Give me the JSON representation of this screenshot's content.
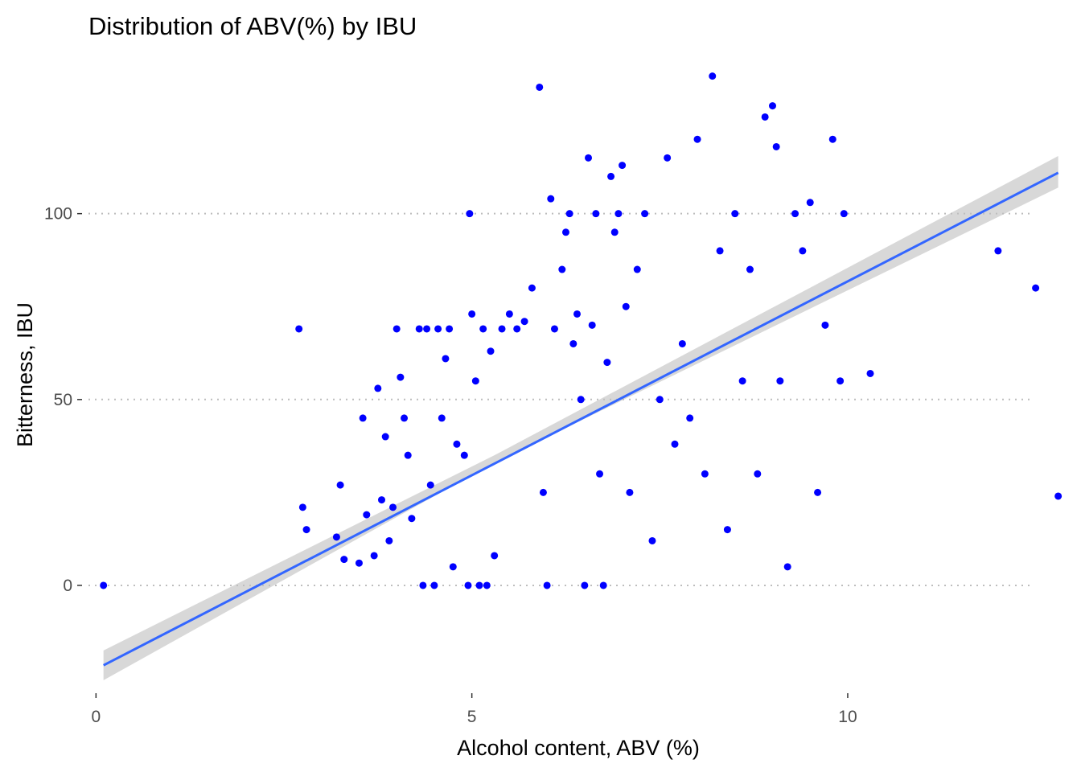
{
  "chart_data": {
    "type": "scatter",
    "title": "Distribution of ABV(%) by IBU",
    "xlabel": "Alcohol content, ABV (%)",
    "ylabel": "Bitterness, IBU",
    "xlim": [
      -0.1,
      12.9
    ],
    "ylim": [
      -29,
      138
    ],
    "x_ticks": [
      0,
      5,
      10
    ],
    "y_ticks": [
      0,
      50,
      100
    ],
    "x_tick_labels": [
      "0",
      "5",
      "10"
    ],
    "y_tick_labels": [
      "0",
      "50",
      "100"
    ],
    "grid": "horizontal dotted lines at y ticks",
    "legend": "none",
    "colors": {
      "points": "#0000FF",
      "trend_line": "#3366FF",
      "confidence_band": "#BEBEBE"
    },
    "trend_line": {
      "x": [
        0.1,
        12.8
      ],
      "y": [
        -21.5,
        111.0
      ]
    },
    "confidence_band": {
      "x": [
        0.1,
        5.3,
        12.8
      ],
      "lower": [
        -25.5,
        33.0,
        107.0
      ],
      "upper": [
        -17.5,
        35.0,
        115.5
      ]
    },
    "points": [
      [
        0.1,
        0
      ],
      [
        2.7,
        69
      ],
      [
        2.75,
        21
      ],
      [
        2.8,
        15
      ],
      [
        3.2,
        13
      ],
      [
        3.25,
        27
      ],
      [
        3.3,
        7
      ],
      [
        3.5,
        6
      ],
      [
        3.55,
        45
      ],
      [
        3.6,
        19
      ],
      [
        3.7,
        8
      ],
      [
        3.75,
        53
      ],
      [
        3.8,
        23
      ],
      [
        3.85,
        40
      ],
      [
        3.9,
        12
      ],
      [
        3.95,
        21
      ],
      [
        4.0,
        69
      ],
      [
        4.05,
        56
      ],
      [
        4.1,
        45
      ],
      [
        4.15,
        35
      ],
      [
        4.2,
        18
      ],
      [
        4.3,
        69
      ],
      [
        4.35,
        0
      ],
      [
        4.4,
        69
      ],
      [
        4.45,
        27
      ],
      [
        4.5,
        0
      ],
      [
        4.55,
        69
      ],
      [
        4.6,
        45
      ],
      [
        4.65,
        61
      ],
      [
        4.7,
        69
      ],
      [
        4.75,
        5
      ],
      [
        4.8,
        38
      ],
      [
        4.9,
        35
      ],
      [
        4.95,
        0
      ],
      [
        4.97,
        100
      ],
      [
        5.0,
        73
      ],
      [
        5.05,
        55
      ],
      [
        5.1,
        0
      ],
      [
        5.15,
        69
      ],
      [
        5.2,
        0
      ],
      [
        5.25,
        63
      ],
      [
        5.3,
        8
      ],
      [
        5.4,
        69
      ],
      [
        5.5,
        73
      ],
      [
        5.6,
        69
      ],
      [
        5.7,
        71
      ],
      [
        5.8,
        80
      ],
      [
        5.9,
        134
      ],
      [
        5.95,
        25
      ],
      [
        6.0,
        0
      ],
      [
        6.05,
        104
      ],
      [
        6.1,
        69
      ],
      [
        6.2,
        85
      ],
      [
        6.25,
        95
      ],
      [
        6.3,
        100
      ],
      [
        6.35,
        65
      ],
      [
        6.4,
        73
      ],
      [
        6.45,
        50
      ],
      [
        6.5,
        0
      ],
      [
        6.55,
        115
      ],
      [
        6.6,
        70
      ],
      [
        6.65,
        100
      ],
      [
        6.7,
        30
      ],
      [
        6.75,
        0
      ],
      [
        6.8,
        60
      ],
      [
        6.85,
        110
      ],
      [
        6.9,
        95
      ],
      [
        6.95,
        100
      ],
      [
        7.0,
        113
      ],
      [
        7.05,
        75
      ],
      [
        7.1,
        25
      ],
      [
        7.2,
        85
      ],
      [
        7.3,
        100
      ],
      [
        7.4,
        12
      ],
      [
        7.5,
        50
      ],
      [
        7.6,
        115
      ],
      [
        7.7,
        38
      ],
      [
        7.8,
        65
      ],
      [
        7.9,
        45
      ],
      [
        8.0,
        120
      ],
      [
        8.1,
        30
      ],
      [
        8.2,
        137
      ],
      [
        8.3,
        90
      ],
      [
        8.4,
        15
      ],
      [
        8.5,
        100
      ],
      [
        8.6,
        55
      ],
      [
        8.7,
        85
      ],
      [
        8.8,
        30
      ],
      [
        8.9,
        126
      ],
      [
        9.0,
        129
      ],
      [
        9.05,
        118
      ],
      [
        9.1,
        55
      ],
      [
        9.2,
        5
      ],
      [
        9.3,
        100
      ],
      [
        9.4,
        90
      ],
      [
        9.5,
        103
      ],
      [
        9.6,
        25
      ],
      [
        9.7,
        70
      ],
      [
        9.8,
        120
      ],
      [
        9.9,
        55
      ],
      [
        9.95,
        100
      ],
      [
        10.3,
        57
      ],
      [
        12.0,
        90
      ],
      [
        12.5,
        80
      ],
      [
        12.8,
        24
      ]
    ]
  }
}
